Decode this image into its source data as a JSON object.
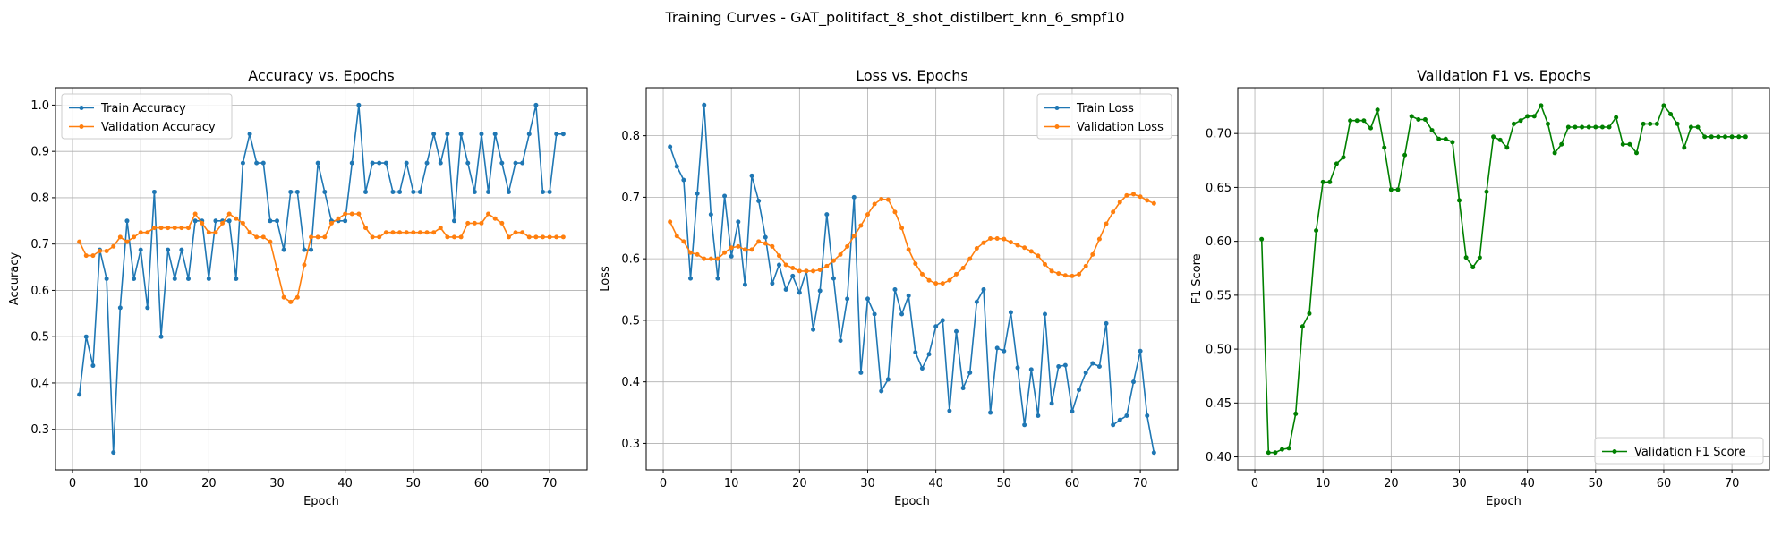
{
  "suptitle": "Training Curves - GAT_politifact_8_shot_distilbert_knn_6_smpf10",
  "colors": {
    "blue": "#1f77b4",
    "orange": "#ff7f0e",
    "green": "#008000"
  },
  "chart_data": [
    {
      "type": "line",
      "title": "Accuracy vs. Epochs",
      "xlabel": "Epoch",
      "ylabel": "Accuracy",
      "xlim": [
        -2.5,
        75.5
      ],
      "ylim": [
        0.2125,
        1.0375
      ],
      "xticks": [
        0,
        10,
        20,
        30,
        40,
        50,
        60,
        70
      ],
      "yticks": [
        0.3,
        0.4,
        0.5,
        0.6,
        0.7,
        0.8,
        0.9,
        1.0
      ],
      "ytick_labels": [
        "0.3",
        "0.4",
        "0.5",
        "0.6",
        "0.7",
        "0.8",
        "0.9",
        "1.0"
      ],
      "grid": true,
      "legend_loc": "upper left",
      "x": [
        1,
        2,
        3,
        4,
        5,
        6,
        7,
        8,
        9,
        10,
        11,
        12,
        13,
        14,
        15,
        16,
        17,
        18,
        19,
        20,
        21,
        22,
        23,
        24,
        25,
        26,
        27,
        28,
        29,
        30,
        31,
        32,
        33,
        34,
        35,
        36,
        37,
        38,
        39,
        40,
        41,
        42,
        43,
        44,
        45,
        46,
        47,
        48,
        49,
        50,
        51,
        52,
        53,
        54,
        55,
        56,
        57,
        58,
        59,
        60,
        61,
        62,
        63,
        64,
        65,
        66,
        67,
        68,
        69,
        70,
        71,
        72
      ],
      "series": [
        {
          "name": "Train Accuracy",
          "color": "#1f77b4",
          "values": [
            0.375,
            0.5,
            0.4375,
            0.6875,
            0.625,
            0.25,
            0.5625,
            0.75,
            0.625,
            0.6875,
            0.5625,
            0.8125,
            0.5,
            0.6875,
            0.625,
            0.6875,
            0.625,
            0.75,
            0.75,
            0.625,
            0.75,
            0.75,
            0.75,
            0.625,
            0.875,
            0.9375,
            0.875,
            0.875,
            0.75,
            0.75,
            0.6875,
            0.8125,
            0.8125,
            0.6875,
            0.6875,
            0.875,
            0.8125,
            0.75,
            0.75,
            0.75,
            0.875,
            1.0,
            0.8125,
            0.875,
            0.875,
            0.875,
            0.8125,
            0.8125,
            0.875,
            0.8125,
            0.8125,
            0.875,
            0.9375,
            0.875,
            0.9375,
            0.75,
            0.9375,
            0.875,
            0.8125,
            0.9375,
            0.8125,
            0.9375,
            0.875,
            0.8125,
            0.875,
            0.875,
            0.9375,
            1.0,
            0.8125,
            0.8125,
            0.9375,
            0.9375
          ]
        },
        {
          "name": "Validation Accuracy",
          "color": "#ff7f0e",
          "values": [
            0.705,
            0.675,
            0.675,
            0.685,
            0.685,
            0.695,
            0.715,
            0.705,
            0.715,
            0.725,
            0.725,
            0.735,
            0.735,
            0.735,
            0.735,
            0.735,
            0.735,
            0.765,
            0.745,
            0.725,
            0.725,
            0.745,
            0.765,
            0.755,
            0.745,
            0.725,
            0.715,
            0.715,
            0.705,
            0.645,
            0.585,
            0.575,
            0.585,
            0.655,
            0.715,
            0.715,
            0.715,
            0.745,
            0.755,
            0.765,
            0.765,
            0.765,
            0.735,
            0.715,
            0.715,
            0.725,
            0.725,
            0.725,
            0.725,
            0.725,
            0.725,
            0.725,
            0.725,
            0.735,
            0.715,
            0.715,
            0.715,
            0.745,
            0.745,
            0.745,
            0.765,
            0.755,
            0.745,
            0.715,
            0.725,
            0.725,
            0.715,
            0.715,
            0.715,
            0.715,
            0.715,
            0.715
          ]
        }
      ]
    },
    {
      "type": "line",
      "title": "Loss vs. Epochs",
      "xlabel": "Epoch",
      "ylabel": "Loss",
      "xlim": [
        -2.5,
        75.5
      ],
      "ylim": [
        0.257,
        0.878
      ],
      "xticks": [
        0,
        10,
        20,
        30,
        40,
        50,
        60,
        70
      ],
      "yticks": [
        0.3,
        0.4,
        0.5,
        0.6,
        0.7,
        0.8
      ],
      "ytick_labels": [
        "0.3",
        "0.4",
        "0.5",
        "0.6",
        "0.7",
        "0.8"
      ],
      "grid": true,
      "legend_loc": "upper right",
      "x": [
        1,
        2,
        3,
        4,
        5,
        6,
        7,
        8,
        9,
        10,
        11,
        12,
        13,
        14,
        15,
        16,
        17,
        18,
        19,
        20,
        21,
        22,
        23,
        24,
        25,
        26,
        27,
        28,
        29,
        30,
        31,
        32,
        33,
        34,
        35,
        36,
        37,
        38,
        39,
        40,
        41,
        42,
        43,
        44,
        45,
        46,
        47,
        48,
        49,
        50,
        51,
        52,
        53,
        54,
        55,
        56,
        57,
        58,
        59,
        60,
        61,
        62,
        63,
        64,
        65,
        66,
        67,
        68,
        69,
        70,
        71,
        72
      ],
      "series": [
        {
          "name": "Train Loss",
          "color": "#1f77b4",
          "values": [
            0.782,
            0.75,
            0.728,
            0.568,
            0.706,
            0.85,
            0.672,
            0.568,
            0.702,
            0.604,
            0.66,
            0.558,
            0.735,
            0.694,
            0.635,
            0.56,
            0.59,
            0.55,
            0.572,
            0.545,
            0.58,
            0.485,
            0.548,
            0.672,
            0.568,
            0.467,
            0.535,
            0.7,
            0.415,
            0.535,
            0.51,
            0.385,
            0.404,
            0.55,
            0.51,
            0.54,
            0.448,
            0.422,
            0.445,
            0.49,
            0.5,
            0.353,
            0.482,
            0.39,
            0.415,
            0.53,
            0.55,
            0.35,
            0.455,
            0.45,
            0.513,
            0.423,
            0.33,
            0.42,
            0.345,
            0.51,
            0.365,
            0.425,
            0.427,
            0.352,
            0.387,
            0.415,
            0.43,
            0.425,
            0.495,
            0.33,
            0.338,
            0.345,
            0.4,
            0.45,
            0.345,
            0.285
          ]
        },
        {
          "name": "Validation Loss",
          "color": "#ff7f0e",
          "values": [
            0.66,
            0.637,
            0.628,
            0.61,
            0.607,
            0.6,
            0.6,
            0.6,
            0.61,
            0.618,
            0.62,
            0.615,
            0.615,
            0.628,
            0.625,
            0.62,
            0.605,
            0.59,
            0.585,
            0.58,
            0.58,
            0.58,
            0.582,
            0.588,
            0.597,
            0.607,
            0.62,
            0.637,
            0.654,
            0.672,
            0.689,
            0.697,
            0.696,
            0.676,
            0.65,
            0.615,
            0.592,
            0.575,
            0.565,
            0.56,
            0.56,
            0.565,
            0.575,
            0.585,
            0.6,
            0.617,
            0.626,
            0.633,
            0.633,
            0.632,
            0.627,
            0.622,
            0.618,
            0.612,
            0.605,
            0.591,
            0.58,
            0.576,
            0.573,
            0.572,
            0.575,
            0.588,
            0.607,
            0.632,
            0.657,
            0.676,
            0.692,
            0.703,
            0.705,
            0.701,
            0.695,
            0.69
          ]
        }
      ]
    },
    {
      "type": "line",
      "title": "Validation F1 vs. Epochs",
      "xlabel": "Epoch",
      "ylabel": "F1 Score",
      "xlim": [
        -2.5,
        75.5
      ],
      "ylim": [
        0.388,
        0.7425
      ],
      "xticks": [
        0,
        10,
        20,
        30,
        40,
        50,
        60,
        70
      ],
      "yticks": [
        0.4,
        0.45,
        0.5,
        0.55,
        0.6,
        0.65,
        0.7
      ],
      "ytick_labels": [
        "0.40",
        "0.45",
        "0.50",
        "0.55",
        "0.60",
        "0.65",
        "0.70"
      ],
      "grid": true,
      "legend_loc": "lower right",
      "x": [
        1,
        2,
        3,
        4,
        5,
        6,
        7,
        8,
        9,
        10,
        11,
        12,
        13,
        14,
        15,
        16,
        17,
        18,
        19,
        20,
        21,
        22,
        23,
        24,
        25,
        26,
        27,
        28,
        29,
        30,
        31,
        32,
        33,
        34,
        35,
        36,
        37,
        38,
        39,
        40,
        41,
        42,
        43,
        44,
        45,
        46,
        47,
        48,
        49,
        50,
        51,
        52,
        53,
        54,
        55,
        56,
        57,
        58,
        59,
        60,
        61,
        62,
        63,
        64,
        65,
        66,
        67,
        68,
        69,
        70,
        71,
        72
      ],
      "series": [
        {
          "name": "Validation F1 Score",
          "color": "#008000",
          "values": [
            0.602,
            0.404,
            0.404,
            0.407,
            0.408,
            0.44,
            0.521,
            0.533,
            0.61,
            0.655,
            0.655,
            0.672,
            0.678,
            0.712,
            0.712,
            0.712,
            0.705,
            0.722,
            0.687,
            0.648,
            0.648,
            0.68,
            0.716,
            0.713,
            0.713,
            0.703,
            0.695,
            0.695,
            0.692,
            0.638,
            0.585,
            0.576,
            0.585,
            0.646,
            0.697,
            0.694,
            0.687,
            0.709,
            0.712,
            0.716,
            0.716,
            0.726,
            0.709,
            0.682,
            0.69,
            0.706,
            0.706,
            0.706,
            0.706,
            0.706,
            0.706,
            0.706,
            0.715,
            0.69,
            0.69,
            0.682,
            0.709,
            0.709,
            0.709,
            0.726,
            0.718,
            0.709,
            0.687,
            0.706,
            0.706,
            0.697,
            0.697,
            0.697,
            0.697,
            0.697,
            0.697,
            0.697
          ]
        }
      ]
    }
  ]
}
